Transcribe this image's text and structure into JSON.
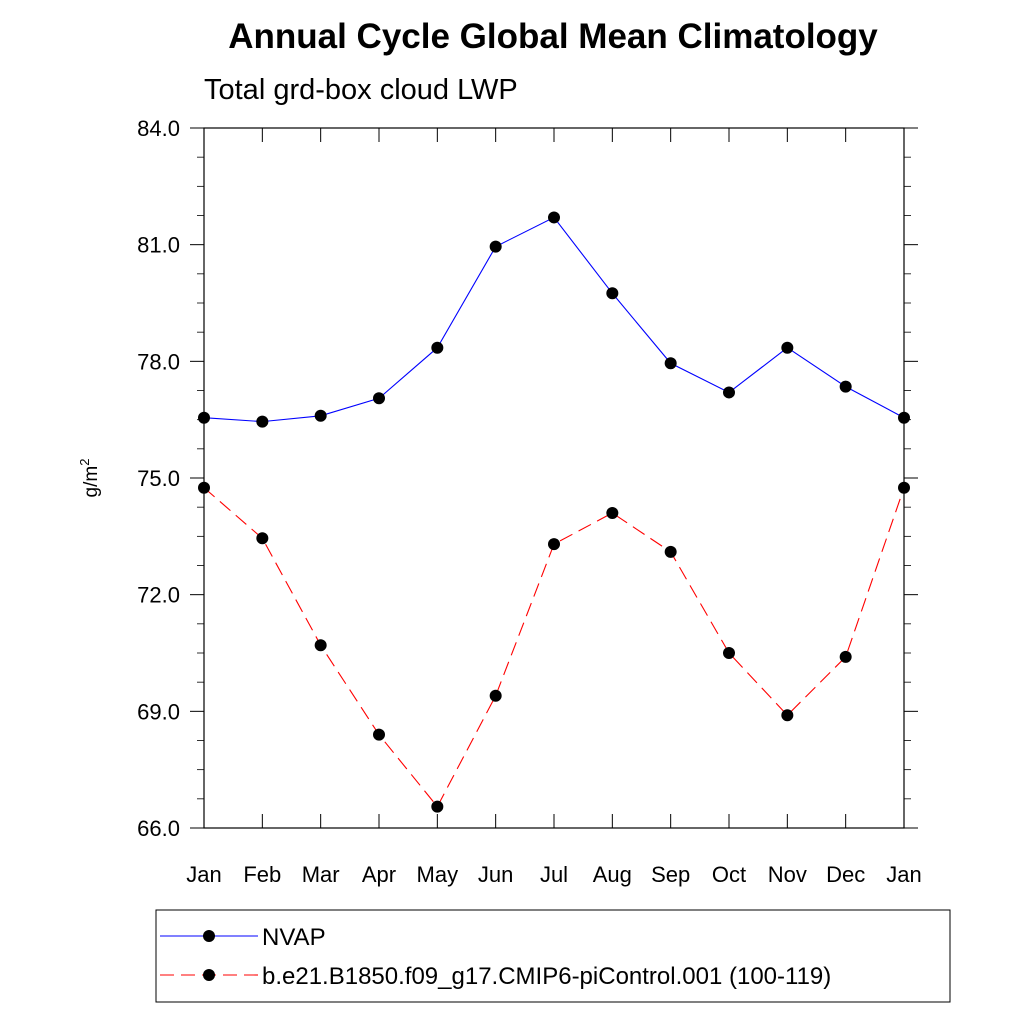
{
  "chart_data": {
    "type": "line",
    "title": "Annual Cycle Global Mean Climatology",
    "subtitle": "Total grd-box cloud LWP",
    "xlabel": "",
    "ylabel": "g/m",
    "ylabel_superscript": "2",
    "categories": [
      "Jan",
      "Feb",
      "Mar",
      "Apr",
      "May",
      "Jun",
      "Jul",
      "Aug",
      "Sep",
      "Oct",
      "Nov",
      "Dec",
      "Jan"
    ],
    "ylim": [
      66.0,
      84.0
    ],
    "yticks": [
      66.0,
      69.0,
      72.0,
      75.0,
      78.0,
      81.0,
      84.0
    ],
    "ytick_labels": [
      "66.0",
      "69.0",
      "72.0",
      "75.0",
      "78.0",
      "81.0",
      "84.0"
    ],
    "grid": false,
    "series": [
      {
        "name": "NVAP",
        "color": "#0000ff",
        "dash": "solid",
        "marker": "filled-circle",
        "values": [
          76.55,
          76.45,
          76.6,
          77.05,
          78.35,
          80.95,
          81.7,
          79.75,
          77.95,
          77.2,
          78.35,
          77.35,
          76.55
        ]
      },
      {
        "name": "b.e21.B1850.f09_g17.CMIP6-piControl.001 (100-119)",
        "color": "#ff0000",
        "dash": "dashed",
        "marker": "filled-circle",
        "values": [
          74.75,
          73.45,
          70.7,
          68.4,
          66.55,
          69.4,
          73.3,
          74.1,
          73.1,
          70.5,
          68.9,
          70.4,
          74.75
        ]
      }
    ],
    "legend_position": "bottom"
  }
}
